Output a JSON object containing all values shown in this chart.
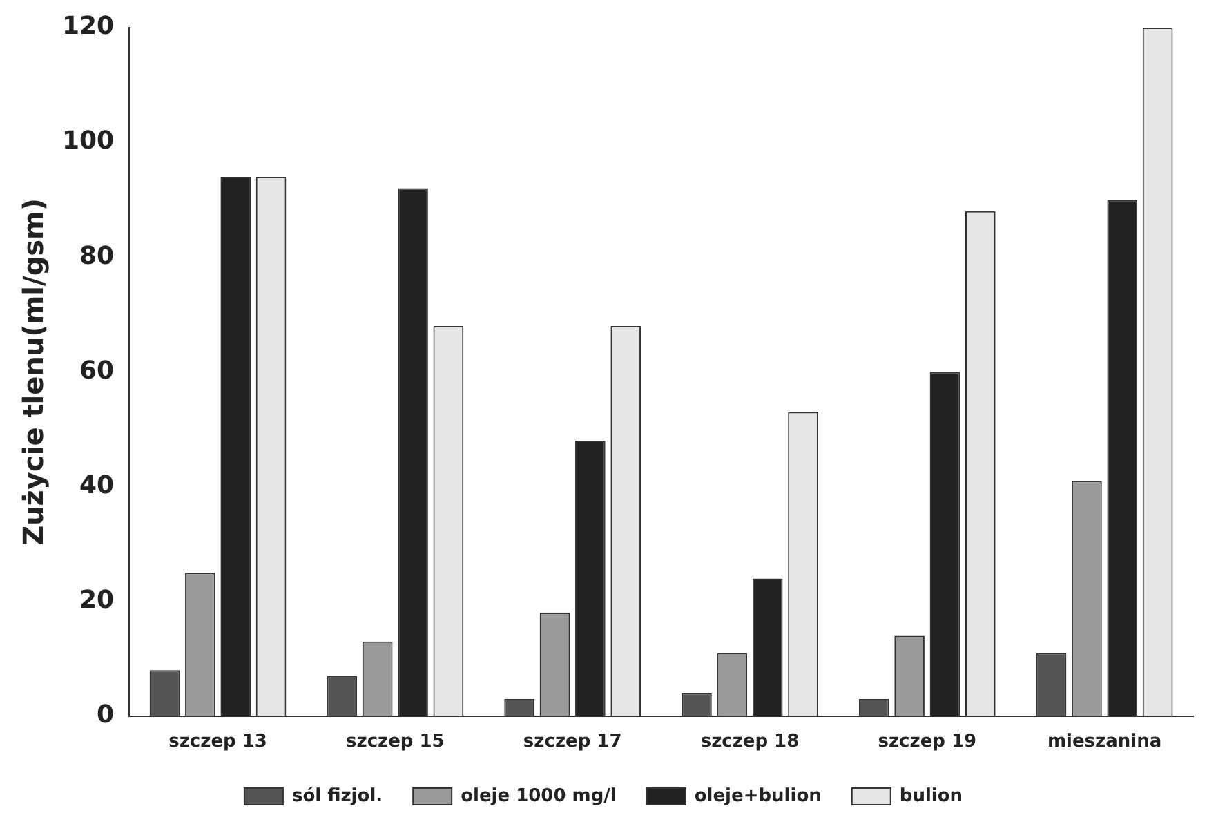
{
  "chart_data": {
    "type": "bar",
    "ylabel": "Zużycie tlenu(ml/gsm)",
    "categories": [
      "szczep 13",
      "szczep 15",
      "szczep 17",
      "szczep 18",
      "szczep 19",
      "mieszanina"
    ],
    "series": [
      {
        "name": "sól fizjol.",
        "color": "#555555",
        "values": [
          8,
          7,
          3,
          4,
          3,
          11
        ]
      },
      {
        "name": "oleje 1000 mg/l",
        "color": "#9a9a9a",
        "values": [
          25,
          13,
          18,
          11,
          14,
          41
        ]
      },
      {
        "name": "oleje+bulion",
        "color": "#222222",
        "values": [
          94,
          92,
          48,
          24,
          60,
          90
        ]
      },
      {
        "name": "bulion",
        "color": "#e6e6e6",
        "values": [
          94,
          68,
          68,
          53,
          88,
          120
        ]
      }
    ],
    "ylim": [
      0,
      120
    ],
    "yticks": [
      0,
      20,
      40,
      60,
      80,
      100,
      120
    ],
    "grid": false,
    "legend": "bottom"
  }
}
